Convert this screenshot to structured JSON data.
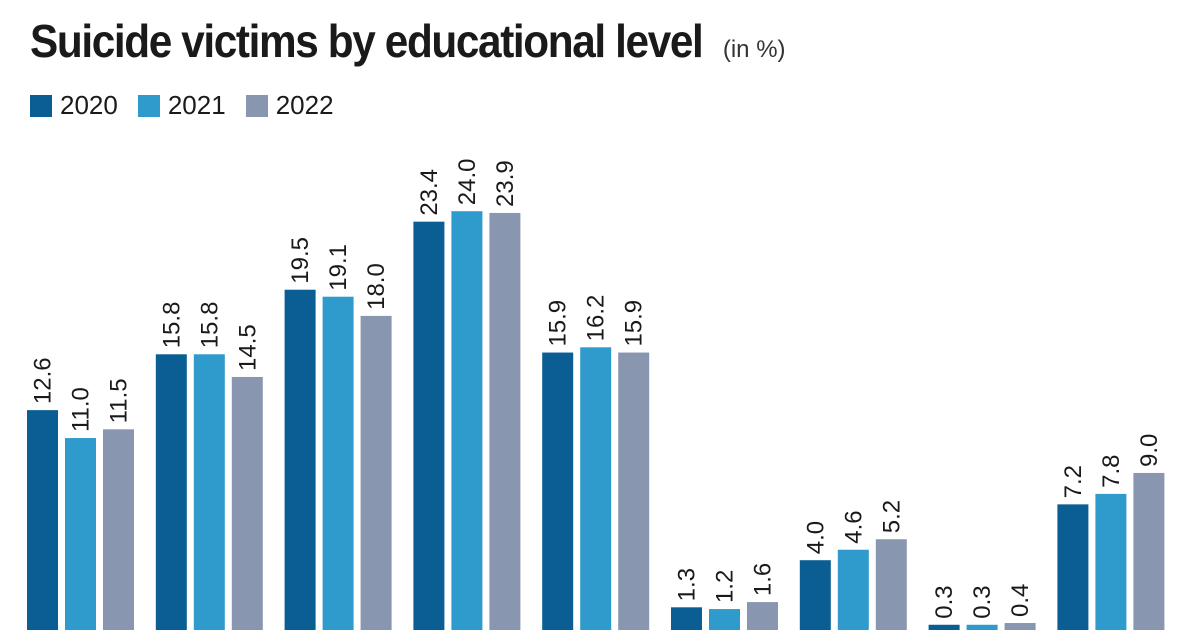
{
  "chart_data": {
    "type": "bar",
    "title": "Suicide victims by educational level",
    "unit": "(in %)",
    "series": [
      {
        "name": "2020",
        "color": "#0b5e93",
        "values": [
          12.6,
          15.8,
          19.5,
          23.4,
          15.9,
          1.3,
          4.0,
          0.3,
          7.2
        ]
      },
      {
        "name": "2021",
        "color": "#2e9bcc",
        "values": [
          11.0,
          15.8,
          19.1,
          24.0,
          16.2,
          1.2,
          4.6,
          0.3,
          7.8
        ]
      },
      {
        "name": "2022",
        "color": "#8896b0",
        "values": [
          11.5,
          14.5,
          18.0,
          23.9,
          15.9,
          1.6,
          5.2,
          0.4,
          9.0
        ]
      }
    ],
    "category_count": 9,
    "legend_position": "top-left",
    "grid": false
  }
}
